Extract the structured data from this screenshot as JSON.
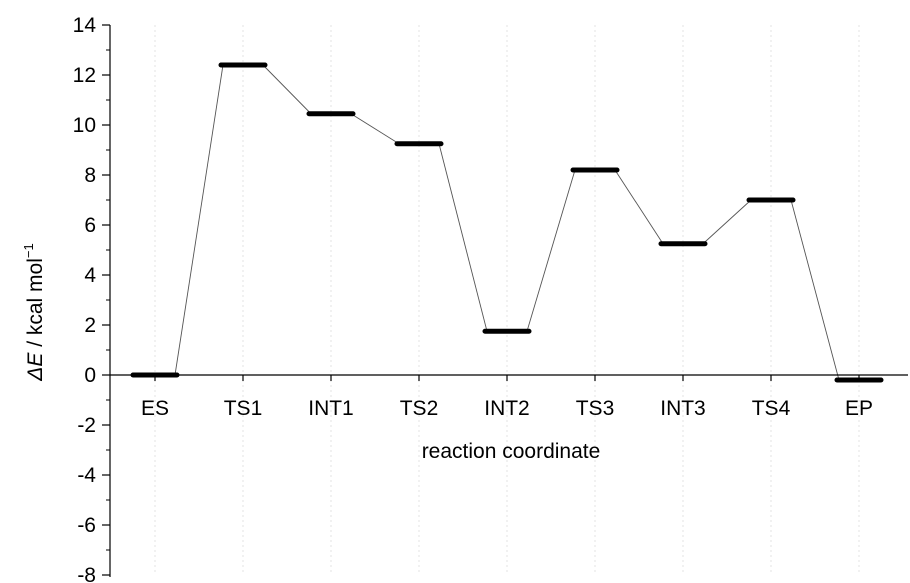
{
  "chart_data": {
    "type": "energy-level-diagram",
    "xlabel": "reaction coordinate",
    "ylabel": {
      "symbol_prefix": "Δ",
      "symbol": "E",
      "unit_text": " / kcal mol",
      "unit_superscript": "−1"
    },
    "ylim": [
      -8,
      14
    ],
    "y_major_ticks": [
      -8,
      -6,
      -4,
      -2,
      0,
      2,
      4,
      6,
      8,
      10,
      12,
      14
    ],
    "y_tick_labels": [
      "-8",
      "-6",
      "-4",
      "-2",
      "0",
      "2",
      "4",
      "6",
      "8",
      "10",
      "12",
      "14"
    ],
    "y_minor_step": 1,
    "x_axis_at_y": 0,
    "grid": "vertical dotted lines at categories",
    "categories": [
      "ES",
      "TS1",
      "INT1",
      "TS2",
      "INT2",
      "TS3",
      "INT3",
      "TS4",
      "EP"
    ],
    "values": [
      0.0,
      12.4,
      10.45,
      9.25,
      1.75,
      8.2,
      5.25,
      7.0,
      -0.2
    ],
    "colors": {
      "levels": "#000000",
      "connectors": "#555555",
      "axis": "#000000",
      "grid": "#e3e3e3"
    }
  }
}
